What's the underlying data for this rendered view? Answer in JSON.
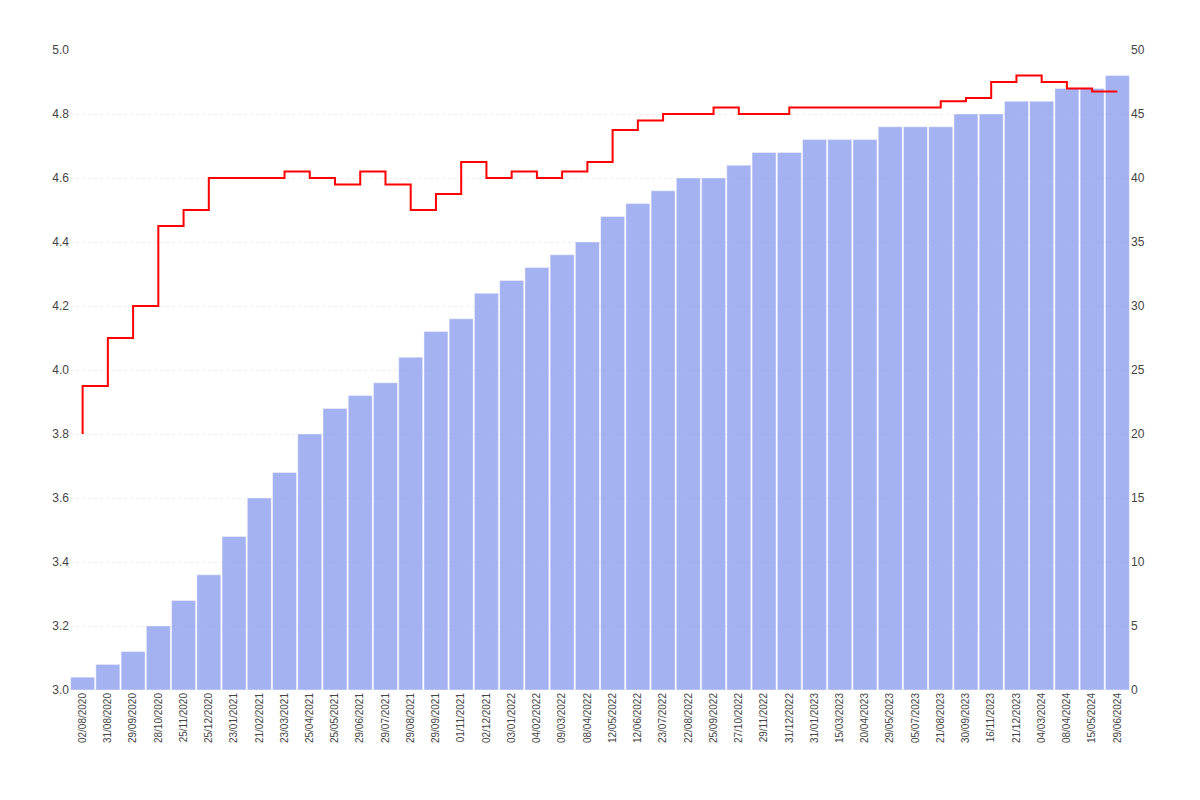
{
  "chart_data": {
    "type": "bar",
    "categories": [
      "02/08/2020",
      "31/08/2020",
      "29/09/2020",
      "28/10/2020",
      "25/11/2020",
      "25/12/2020",
      "23/01/2021",
      "21/02/2021",
      "23/03/2021",
      "25/04/2021",
      "25/05/2021",
      "29/06/2021",
      "29/07/2021",
      "29/08/2021",
      "29/09/2021",
      "01/11/2021",
      "02/12/2021",
      "03/01/2022",
      "04/02/2022",
      "09/03/2022",
      "08/04/2022",
      "12/05/2022",
      "12/06/2022",
      "23/07/2022",
      "22/08/2022",
      "25/09/2022",
      "27/10/2022",
      "29/11/2022",
      "31/12/2022",
      "31/01/2023",
      "15/03/2023",
      "20/04/2023",
      "29/05/2023",
      "05/07/2023",
      "21/08/2023",
      "30/09/2023",
      "16/11/2023",
      "21/12/2023",
      "04/03/2024",
      "08/04/2024",
      "15/05/2024",
      "29/06/2024"
    ],
    "series": [
      {
        "type": "bar",
        "color": "#8899ee",
        "axis": "y2",
        "values": [
          1,
          2,
          3,
          5,
          7,
          9,
          12,
          15,
          17,
          20,
          22,
          23,
          24,
          26,
          28,
          29,
          31,
          32,
          33,
          34,
          35,
          37,
          38,
          39,
          40,
          40,
          41,
          42,
          42,
          43,
          43,
          43,
          44,
          44,
          44,
          45,
          45,
          46,
          46,
          47,
          47,
          48
        ]
      },
      {
        "type": "step",
        "color": "#ff0000",
        "values": [
          3.8,
          3.95,
          4.1,
          4.2,
          4.45,
          4.5,
          4.6,
          4.6,
          4.6,
          4.62,
          4.6,
          4.58,
          4.62,
          4.58,
          4.5,
          4.55,
          4.65,
          4.6,
          4.62,
          4.6,
          4.62,
          4.65,
          4.75,
          4.78,
          4.8,
          4.8,
          4.82,
          4.8,
          4.8,
          4.82,
          4.82,
          4.82,
          4.82,
          4.82,
          4.82,
          4.84,
          4.85,
          4.9,
          4.92,
          4.9,
          4.88,
          4.87
        ]
      }
    ],
    "ylim": [
      3.0,
      5.0
    ],
    "yticks": [
      {
        "value": 3.0,
        "label": "3.0"
      },
      3.2,
      3.4,
      3.6,
      3.8,
      {
        "value": 4.0,
        "label": "4.0"
      },
      4.2,
      4.4,
      4.6,
      4.8,
      {
        "value": 5.0,
        "label": "5.0"
      }
    ],
    "y2lim": [
      0,
      50
    ],
    "y2ticks": [
      0,
      5,
      10,
      15,
      20,
      25,
      30,
      35,
      40,
      45,
      50
    ],
    "grid": true
  }
}
